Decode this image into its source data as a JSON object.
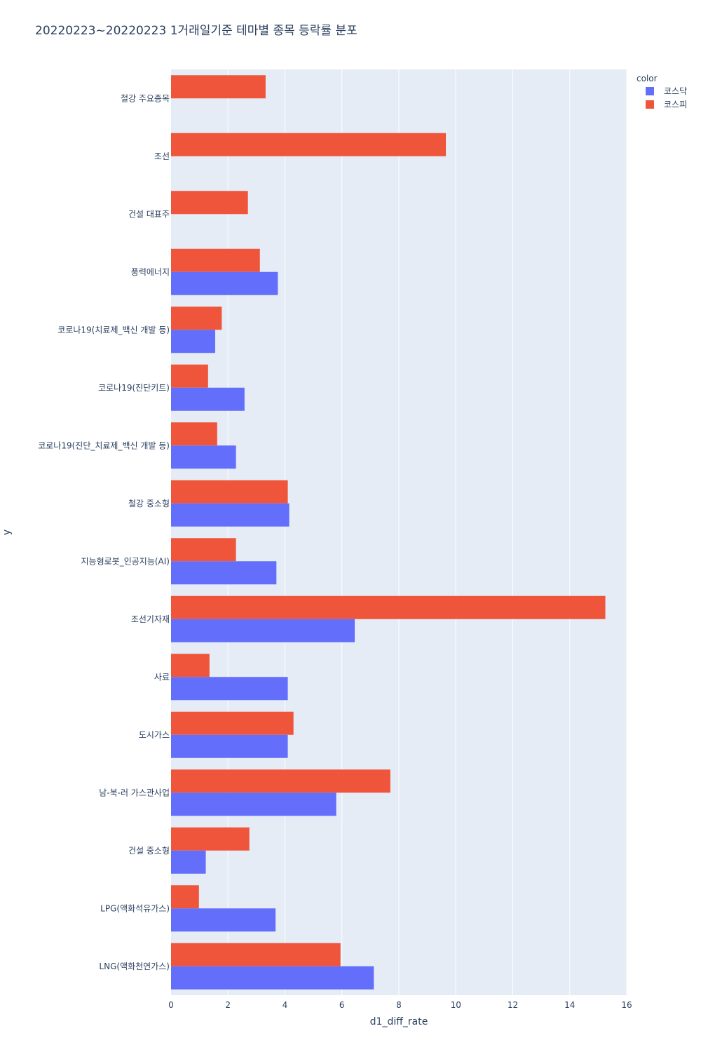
{
  "chart_data": {
    "type": "bar",
    "orientation": "horizontal",
    "title": "20220223~20220223 1거래일기준 테마별 종목 등락률 분포",
    "xlabel": "d1_diff_rate",
    "ylabel": "y",
    "xlim": [
      0,
      16
    ],
    "xticks": [
      0,
      2,
      4,
      6,
      8,
      10,
      12,
      14,
      16
    ],
    "grid": true,
    "legend_position": "top-right",
    "legend_title": "color",
    "categories": [
      "철강 주요종목",
      "조선",
      "건설 대표주",
      "풍력에너지",
      "코로나19(치료제_백신 개발 등)",
      "코로나19(진단키트)",
      "코로나19(진단_치료제_백신 개발 등)",
      "철강 중소형",
      "지능형로봇_인공지능(AI)",
      "조선기자재",
      "사료",
      "도시가스",
      "남-북-러 가스관사업",
      "건설 중소형",
      "LPG(액화석유가스)",
      "LNG(액화천연가스)"
    ],
    "series": [
      {
        "name": "코스닥",
        "color": "#636efa",
        "values": [
          null,
          null,
          null,
          3.75,
          1.55,
          2.58,
          2.28,
          4.15,
          3.7,
          6.45,
          4.1,
          4.1,
          5.8,
          1.22,
          3.67,
          7.12
        ]
      },
      {
        "name": "코스피",
        "color": "#ef553b",
        "values": [
          3.32,
          9.65,
          2.7,
          3.12,
          1.78,
          1.3,
          1.62,
          4.1,
          2.28,
          15.25,
          1.35,
          4.3,
          7.7,
          2.75,
          0.98,
          5.95
        ]
      }
    ]
  }
}
